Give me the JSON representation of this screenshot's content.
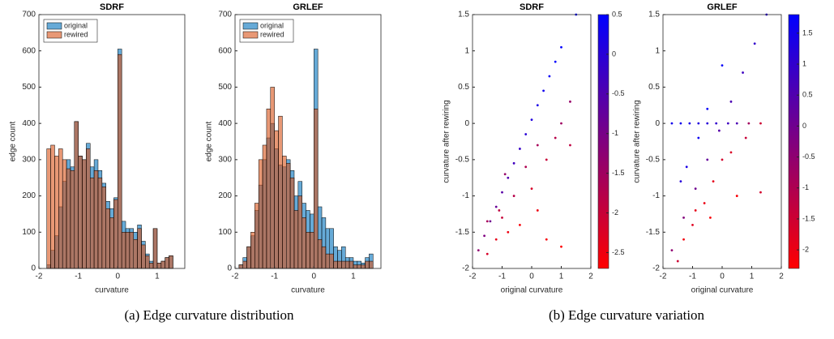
{
  "chart_data": [
    {
      "type": "histogram",
      "title": "SDRF",
      "xlabel": "curvature",
      "ylabel": "edge count",
      "bins": [
        -1.9,
        -1.8,
        -1.7,
        -1.6,
        -1.5,
        -1.4,
        -1.3,
        -1.2,
        -1.1,
        -1.0,
        -0.9,
        -0.8,
        -0.7,
        -0.6,
        -0.5,
        -0.4,
        -0.3,
        -0.2,
        -0.1,
        0.0,
        0.1,
        0.2,
        0.3,
        0.4,
        0.5,
        0.6,
        0.7,
        0.8,
        0.9,
        1.0,
        1.1,
        1.2,
        1.3,
        1.4,
        1.5,
        1.6
      ],
      "series": [
        {
          "name": "original",
          "color": "#0072bd",
          "values": [
            0,
            10,
            50,
            90,
            170,
            240,
            300,
            280,
            405,
            310,
            300,
            345,
            280,
            300,
            270,
            235,
            185,
            165,
            195,
            605,
            130,
            110,
            110,
            100,
            120,
            75,
            40,
            20,
            110,
            15,
            20,
            30,
            35,
            0,
            0
          ]
        },
        {
          "name": "rewired",
          "color": "#d95319",
          "values": [
            0,
            330,
            340,
            310,
            330,
            300,
            275,
            270,
            405,
            310,
            300,
            330,
            250,
            270,
            250,
            225,
            165,
            140,
            190,
            590,
            100,
            100,
            100,
            80,
            110,
            65,
            35,
            15,
            110,
            15,
            20,
            30,
            35,
            0,
            0
          ]
        }
      ],
      "opacity": 0.6,
      "xlim": [
        -2,
        1.7
      ],
      "xticks": [
        -2,
        -1,
        0,
        1
      ],
      "ylim": [
        0,
        700
      ],
      "yticks": [
        0,
        100,
        200,
        300,
        400,
        500,
        600,
        700
      ],
      "legend": "top-left"
    },
    {
      "type": "histogram",
      "title": "GRLEF",
      "xlabel": "curvature",
      "ylabel": "edge count",
      "bins": [
        -1.9,
        -1.8,
        -1.7,
        -1.6,
        -1.5,
        -1.4,
        -1.3,
        -1.2,
        -1.1,
        -1.0,
        -0.9,
        -0.8,
        -0.7,
        -0.6,
        -0.5,
        -0.4,
        -0.3,
        -0.2,
        -0.1,
        0.0,
        0.1,
        0.2,
        0.3,
        0.4,
        0.5,
        0.6,
        0.7,
        0.8,
        0.9,
        1.0,
        1.1,
        1.2,
        1.3,
        1.4,
        1.5,
        1.6
      ],
      "series": [
        {
          "name": "original",
          "color": "#0072bd",
          "values": [
            10,
            30,
            60,
            90,
            160,
            230,
            300,
            360,
            400,
            330,
            285,
            280,
            300,
            270,
            200,
            240,
            180,
            160,
            150,
            605,
            170,
            140,
            110,
            110,
            60,
            50,
            60,
            30,
            30,
            20,
            20,
            15,
            30,
            40,
            0
          ]
        },
        {
          "name": "rewired",
          "color": "#d95319",
          "values": [
            10,
            20,
            60,
            100,
            180,
            300,
            340,
            440,
            500,
            380,
            420,
            310,
            290,
            250,
            160,
            200,
            140,
            100,
            100,
            440,
            80,
            60,
            40,
            40,
            20,
            20,
            20,
            20,
            20,
            10,
            10,
            10,
            20,
            20,
            0
          ]
        }
      ],
      "opacity": 0.6,
      "xlim": [
        -2,
        1.7
      ],
      "xticks": [
        -2,
        -1,
        0,
        1
      ],
      "ylim": [
        0,
        700
      ],
      "yticks": [
        0,
        100,
        200,
        300,
        400,
        500,
        600,
        700
      ],
      "legend": "top-left"
    },
    {
      "type": "scatter",
      "title": "SDRF",
      "xlabel": "original curvature",
      "ylabel": "curvature after rewiring",
      "x": [
        -1.8,
        -1.6,
        -1.4,
        -1.2,
        -1,
        -0.8,
        -0.6,
        -0.4,
        -0.2,
        0,
        0.2,
        0.4,
        0.6,
        0.8,
        1.0,
        1.5,
        -1.5,
        -1.2,
        -1.0,
        -0.8,
        -0.6,
        -0.4,
        -0.2,
        0,
        0.2,
        0.2,
        0.5,
        0.5,
        0.8,
        1.0,
        1.0,
        1.3,
        1.3,
        -1.5,
        -0.9,
        -1.1
      ],
      "y": [
        -1.75,
        -1.55,
        -1.35,
        -1.15,
        -0.95,
        -0.75,
        -0.55,
        -0.35,
        -0.15,
        0.05,
        0.25,
        0.45,
        0.65,
        0.85,
        1.05,
        1.5,
        -1.8,
        -1.6,
        -1.3,
        -1.5,
        -1.0,
        -1.4,
        -0.6,
        -0.9,
        -0.3,
        -1.2,
        -0.5,
        -1.6,
        -0.2,
        0,
        -1.7,
        0.3,
        -0.3,
        -1.35,
        -0.7,
        -1.2
      ],
      "c": [
        -1.3,
        -1.1,
        -0.9,
        -0.8,
        -0.6,
        -0.5,
        -0.3,
        -0.2,
        0,
        0.1,
        0.2,
        0.3,
        0.4,
        0.5,
        0.5,
        0.5,
        -2.2,
        -2.4,
        -2,
        -2.5,
        -1.8,
        -2.6,
        -1.7,
        -2.2,
        -1.6,
        -2.5,
        -2,
        -2.6,
        -1.8,
        -1.5,
        -2.7,
        -1.4,
        -1.9,
        -1.6,
        -1.4,
        -1.9
      ],
      "xlim": [
        -2,
        2
      ],
      "xticks": [
        -2,
        -1,
        0,
        1,
        2
      ],
      "ylim": [
        -2,
        1.5
      ],
      "yticks": [
        -2,
        -1.5,
        -1,
        -0.5,
        0,
        0.5,
        1,
        1.5
      ],
      "colorbar": {
        "lim": [
          -2.7,
          0.5
        ],
        "ticks": [
          -2.5,
          -2,
          -1.5,
          -1,
          -0.5,
          0,
          0.5
        ],
        "colors": [
          "#ff0000",
          "#0000ff"
        ]
      }
    },
    {
      "type": "scatter",
      "title": "GRLEF",
      "xlabel": "original curvature",
      "ylabel": "curvature after rewiring",
      "x": [
        -1.7,
        -1.4,
        -1.1,
        -0.8,
        -0.5,
        -0.2,
        0.2,
        0.5,
        0.9,
        1.3,
        -1.7,
        -1.3,
        -0.9,
        -0.5,
        -0.1,
        0.3,
        0.7,
        1.1,
        1.5,
        -1.2,
        -0.8,
        -0.5,
        0,
        -1.4,
        -1.5,
        -1.0,
        -0.6,
        -0.3,
        0,
        0.3,
        0.5,
        0.8,
        1.3,
        -1.3,
        -0.9,
        -0.4
      ],
      "y": [
        0,
        0,
        0,
        0,
        0,
        0,
        0,
        0,
        0,
        0,
        -1.75,
        -1.3,
        -0.9,
        -0.5,
        -0.1,
        0.3,
        0.7,
        1.1,
        1.5,
        -0.6,
        -0.2,
        0.2,
        0.8,
        -0.8,
        -1.9,
        -1.4,
        -1.1,
        -0.8,
        -0.5,
        -0.4,
        -1.0,
        -0.2,
        -0.95,
        -1.6,
        -1.2,
        -1.3
      ],
      "c": [
        1.5,
        1.5,
        1.4,
        1.3,
        1.2,
        1.0,
        0.8,
        0.6,
        -0.8,
        -1.5,
        -0.5,
        -0.3,
        0,
        0.2,
        0.4,
        0.6,
        0.8,
        1.0,
        1.2,
        1.4,
        1.6,
        1.7,
        1.7,
        1.2,
        -1.5,
        -1.8,
        -2.0,
        -1.9,
        -1.6,
        -1.7,
        -2.2,
        -1.4,
        -1.6,
        -2.1,
        -1.9,
        -2.2
      ],
      "xlim": [
        -2,
        2
      ],
      "xticks": [
        -2,
        -1,
        0,
        1,
        2
      ],
      "ylim": [
        -2,
        1.5
      ],
      "yticks": [
        -2,
        -1.5,
        -1,
        -0.5,
        0,
        0.5,
        1,
        1.5
      ],
      "colorbar": {
        "lim": [
          -2.3,
          1.8
        ],
        "ticks": [
          -2,
          -1.5,
          -1,
          -0.5,
          0,
          0.5,
          1,
          1.5
        ],
        "colors": [
          "#ff0000",
          "#0000ff"
        ]
      }
    }
  ],
  "captions": [
    "(a) Edge curvature distribution",
    "(b) Edge curvature variation"
  ]
}
